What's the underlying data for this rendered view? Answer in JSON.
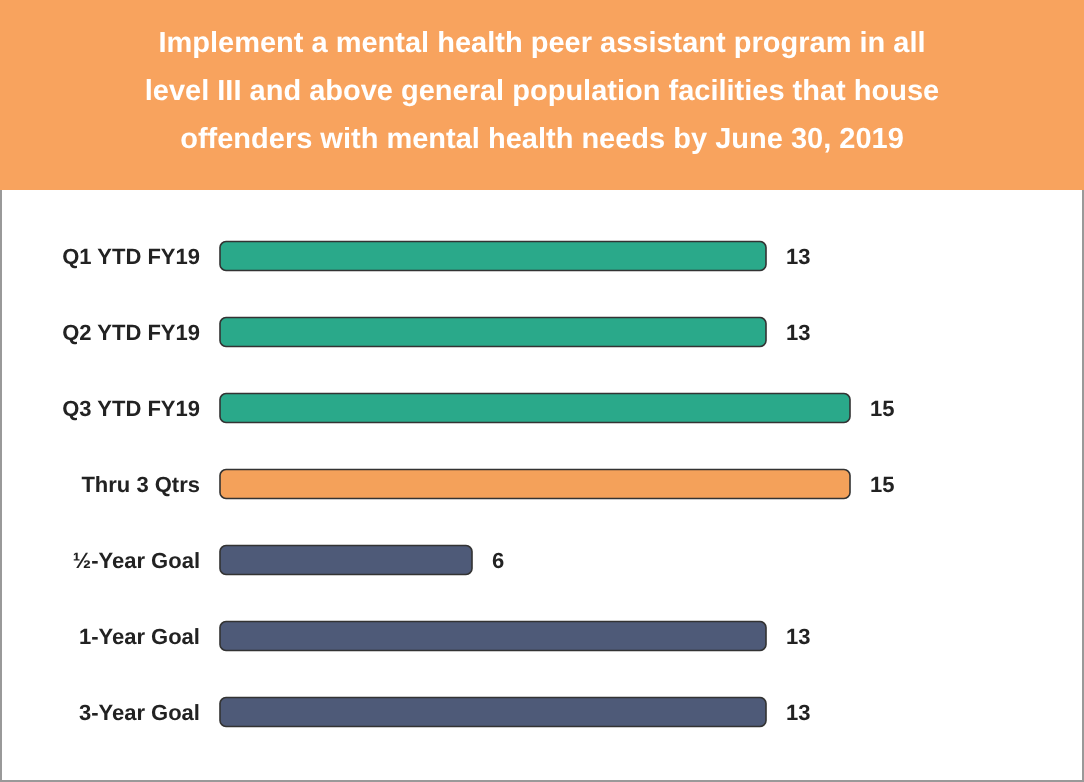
{
  "chart_data": {
    "type": "bar",
    "orientation": "horizontal",
    "title": "Implement a mental health peer assistant program in all level III and above general population facilities that house offenders with mental health needs by June 30, 2019",
    "categories": [
      "Q1 YTD FY19",
      "Q2 YTD FY19",
      "Q3 YTD FY19",
      "Thru 3 Qtrs",
      "½-Year Goal",
      "1-Year Goal",
      "3-Year Goal"
    ],
    "values": [
      13,
      13,
      15,
      15,
      6,
      13,
      13
    ],
    "colors": [
      "#2aa98a",
      "#2aa98a",
      "#2aa98a",
      "#f4a15a",
      "#4e5a78",
      "#4e5a78",
      "#4e5a78"
    ],
    "data_labels": true
  }
}
